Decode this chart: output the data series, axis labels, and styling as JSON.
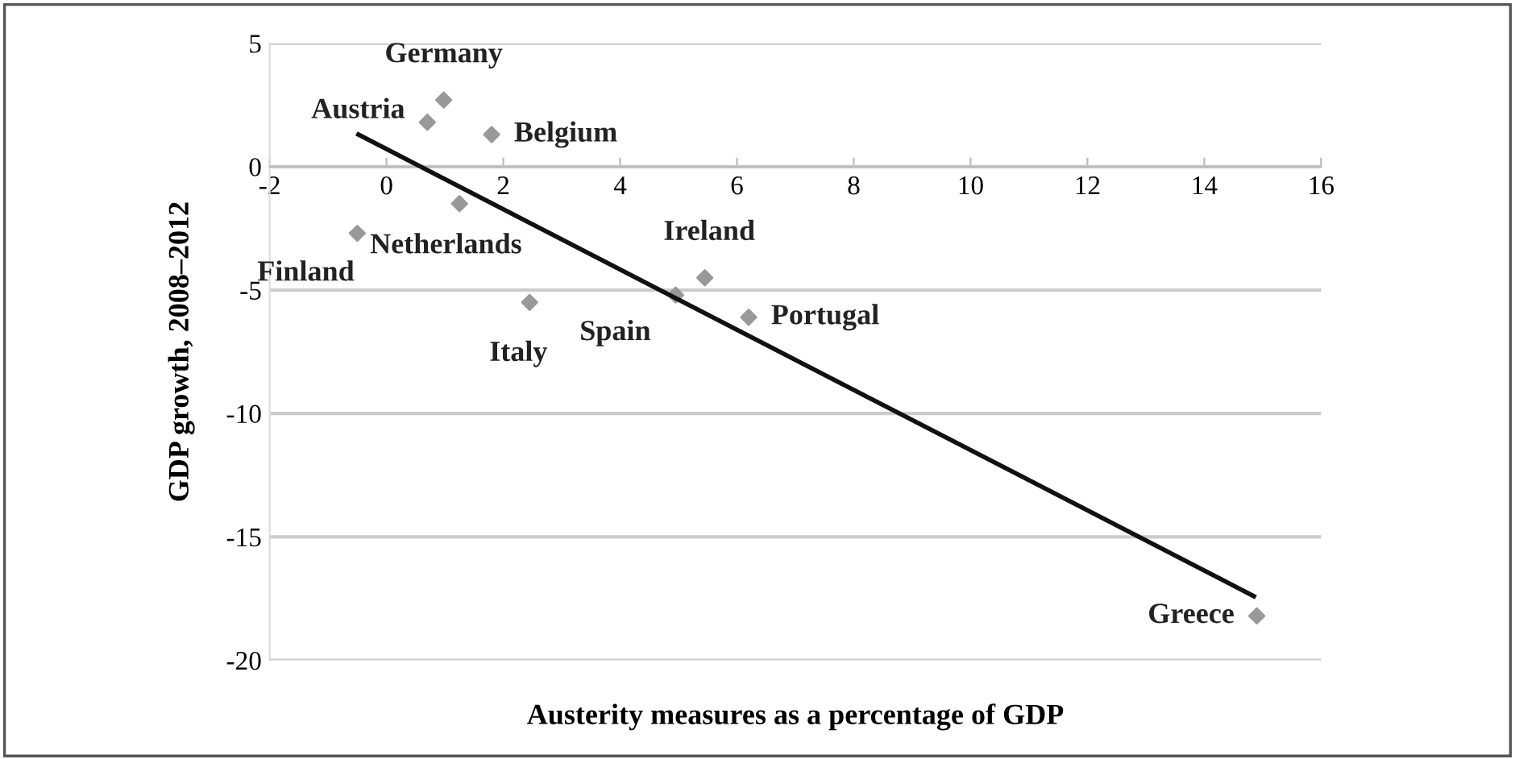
{
  "chart_data": {
    "type": "scatter",
    "xlabel": "Austerity measures as a percentage of GDP",
    "ylabel": "GDP growth, 2008–2012",
    "xlim": [
      -2,
      16
    ],
    "xticks": [
      -2,
      0,
      2,
      4,
      6,
      8,
      10,
      12,
      14,
      16
    ],
    "ylim": [
      -20,
      5
    ],
    "yticks": [
      -20,
      -15,
      -10,
      -5,
      0,
      5
    ],
    "grid": "y",
    "marker": "diamond",
    "series": [
      {
        "color": "#999999",
        "x": [
          0.98,
          0.7,
          1.8,
          1.25,
          -0.5,
          2.45,
          4.95,
          5.45,
          6.2,
          14.9
        ],
        "values": [
          2.7,
          1.8,
          1.3,
          -1.5,
          -2.7,
          -5.5,
          -5.2,
          -4.5,
          -6.1,
          -18.2
        ]
      },
      {
        "type": "line",
        "color": "#111111",
        "x": [
          -0.48,
          14.85
        ],
        "values": [
          1.3,
          -17.4
        ],
        "marker": "none"
      }
    ],
    "annotations": [
      {
        "text": "Germany",
        "x": 0.98,
        "y": 2.7
      },
      {
        "text": "Austria",
        "x": 0.7,
        "y": 1.8
      },
      {
        "text": "Belgium",
        "x": 1.8,
        "y": 1.3
      },
      {
        "text": "Netherlands",
        "x": 1.25,
        "y": -1.5
      },
      {
        "text": "Finland",
        "x": -0.5,
        "y": -2.7
      },
      {
        "text": "Italy",
        "x": 2.45,
        "y": -5.5
      },
      {
        "text": "Spain",
        "x": 4.95,
        "y": -5.2
      },
      {
        "text": "Ireland",
        "x": 5.45,
        "y": -4.5
      },
      {
        "text": "Portugal",
        "x": 6.2,
        "y": -6.1
      },
      {
        "text": "Greece",
        "x": 14.9,
        "y": -18.2
      }
    ]
  }
}
